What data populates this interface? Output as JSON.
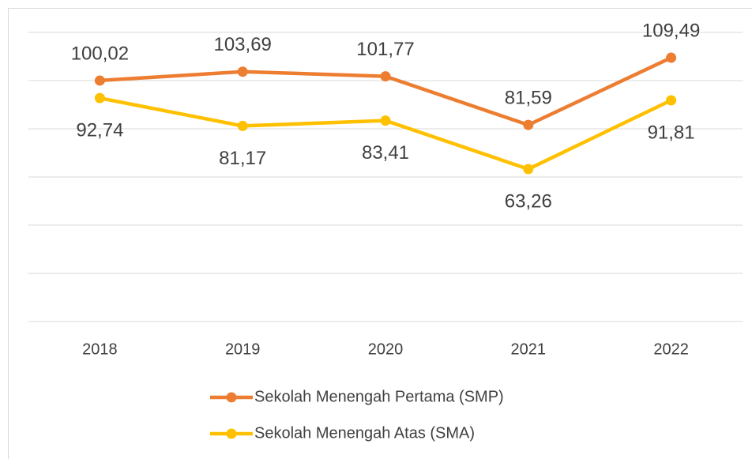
{
  "chart_data": {
    "type": "line",
    "categories": [
      "2018",
      "2019",
      "2020",
      "2021",
      "2022"
    ],
    "series": [
      {
        "name": "Sekolah Menengah Pertama (SMP)",
        "color": "#ED7D31",
        "values": [
          100.02,
          103.69,
          101.77,
          81.59,
          109.49
        ],
        "value_labels": [
          "100,02",
          "103,69",
          "101,77",
          "81,59",
          "109,49"
        ]
      },
      {
        "name": "Sekolah Menengah Atas (SMA)",
        "color": "#FFC000",
        "values": [
          92.74,
          81.17,
          83.41,
          63.26,
          91.81
        ],
        "value_labels": [
          "92,74",
          "81,17",
          "83,41",
          "63,26",
          "91,81"
        ]
      }
    ],
    "ylim": [
      0,
      120
    ],
    "yticks": [
      0,
      20,
      40,
      60,
      80,
      100,
      120
    ],
    "grid": true
  }
}
